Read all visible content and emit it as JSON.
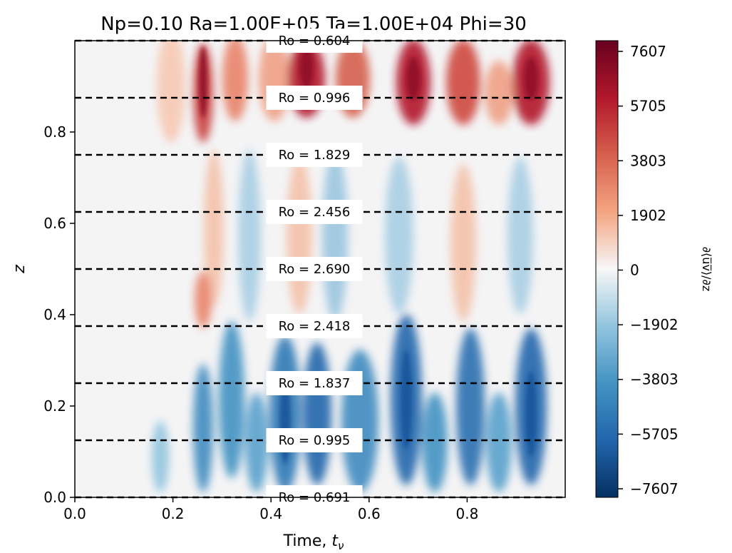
{
  "chart_data": {
    "type": "heatmap",
    "title": "Np=0.10 Ra=1.00E+05 Ta=1.00E+04 Phi=30",
    "xlabel": "Time, ",
    "xlabel_symbol": "t",
    "xlabel_sub": "ν",
    "ylabel": "z",
    "xlim": [
      0.0,
      1.0
    ],
    "ylim": [
      0.0,
      1.0
    ],
    "x_ticks": [
      0.0,
      0.2,
      0.4,
      0.6,
      0.8
    ],
    "x_tick_labels": [
      "0.0",
      "0.2",
      "0.4",
      "0.6",
      "0.8"
    ],
    "y_ticks": [
      0.0,
      0.2,
      0.4,
      0.6,
      0.8
    ],
    "y_tick_labels": [
      "0.0",
      "0.2",
      "0.4",
      "0.6",
      "0.8"
    ],
    "colorbar": {
      "label": "∂⟨u̅v̅⟩/∂z",
      "colormap": "RdBu_r",
      "range": [
        -7607,
        7607
      ],
      "ticks": [
        7607,
        5705,
        3803,
        1902,
        0,
        -1902,
        -3803,
        -5705,
        -7607
      ],
      "tick_labels": [
        "7607",
        "5705",
        "3803",
        "1902",
        "0",
        "−1902",
        "−3803",
        "−5705",
        "−7607"
      ]
    },
    "reference_lines": [
      {
        "z": 1.0,
        "label": "Ro = 0.604"
      },
      {
        "z": 0.875,
        "label": "Ro = 0.996"
      },
      {
        "z": 0.75,
        "label": "Ro = 1.829"
      },
      {
        "z": 0.625,
        "label": "Ro = 2.456"
      },
      {
        "z": 0.5,
        "label": "Ro = 2.690"
      },
      {
        "z": 0.375,
        "label": "Ro = 2.418"
      },
      {
        "z": 0.25,
        "label": "Ro = 1.837"
      },
      {
        "z": 0.125,
        "label": "Ro = 0.995"
      },
      {
        "z": 0.0,
        "label": "Ro = 0.691"
      }
    ],
    "reference_line_style": "black dashed",
    "label_position": "centered near t = 0.48"
  }
}
